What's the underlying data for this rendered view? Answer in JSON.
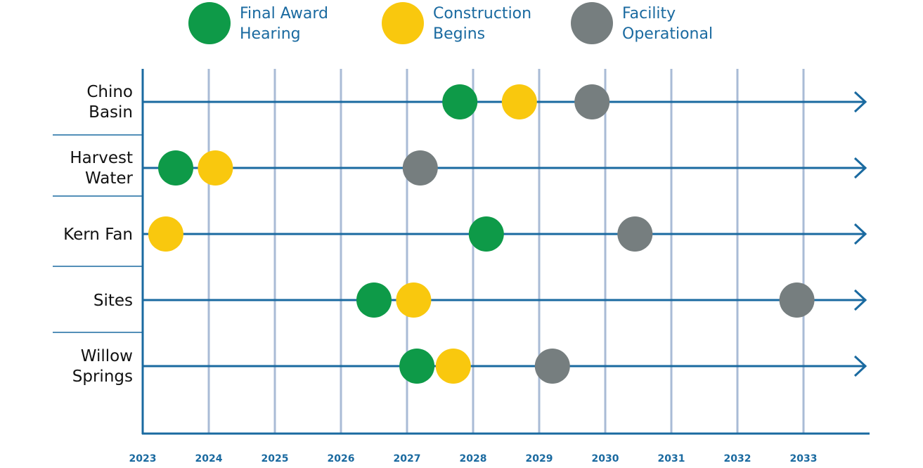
{
  "colors": {
    "award": "#0e9a48",
    "award_shadow": "#077a39",
    "construction": "#f9c80e",
    "construction_shadow": "#b9951f",
    "operational": "#767e7f",
    "operational_shadow": "#555b5c",
    "axis": "#1a6aa0",
    "grid": "#a9bbd6",
    "text": "#1a6aa0"
  },
  "legend": [
    {
      "key": "award",
      "line1": "Final Award",
      "line2": "Hearing",
      "icon": "handshake-dollar-icon"
    },
    {
      "key": "construction",
      "line1": "Construction",
      "line2": "Begins",
      "icon": "hard-hat-icon"
    },
    {
      "key": "operational",
      "line1": "Facility",
      "line2": "Operational",
      "icon": "water-faucet-icon"
    }
  ],
  "chart_data": {
    "type": "scatter",
    "title": "",
    "xlabel": "",
    "ylabel": "",
    "xlim": [
      2023,
      2034
    ],
    "x_ticks": [
      "2023",
      "2024",
      "2025",
      "2026",
      "2027",
      "2028",
      "2029",
      "2030",
      "2031",
      "2032",
      "2033"
    ],
    "grid": "vertical",
    "legend_position": "top",
    "rows": [
      {
        "line1": "Chino",
        "line2": "Basin",
        "events": {
          "award": 2027.8,
          "construction": 2028.7,
          "operational": 2029.8
        }
      },
      {
        "line1": "Harvest",
        "line2": "Water",
        "events": {
          "award": 2023.5,
          "construction": 2024.1,
          "operational": 2027.2
        }
      },
      {
        "line1": "Kern Fan",
        "line2": "",
        "events": {
          "award": 2028.2,
          "construction": 2023.35,
          "operational": 2030.45
        }
      },
      {
        "line1": "Sites",
        "line2": "",
        "events": {
          "award": 2026.5,
          "construction": 2027.1,
          "operational": 2032.9
        }
      },
      {
        "line1": "Willow",
        "line2": "Springs",
        "events": {
          "award": 2027.15,
          "construction": 2027.7,
          "operational": 2029.2
        }
      }
    ]
  }
}
